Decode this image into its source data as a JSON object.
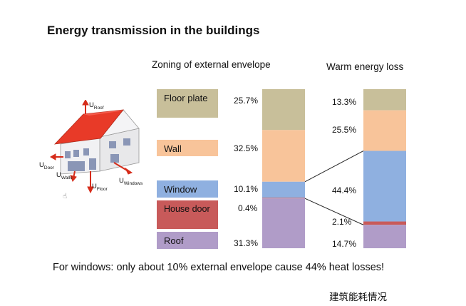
{
  "title": "Energy transmission in the buildings",
  "footer": "建筑能耗情况",
  "caption": "For windows: only about 10% external envelope cause 44% heat losses!",
  "house_labels": {
    "roof": "U",
    "roof_sub": "Roof",
    "door": "U",
    "door_sub": "Door",
    "walls": "U",
    "walls_sub": "Walls",
    "floor": "U",
    "floor_sub": "Floor",
    "windows": "U",
    "windows_sub": "Windows"
  },
  "colors": {
    "floor_plate": "#c8bf9a",
    "wall": "#f8c49a",
    "window": "#8fb0e0",
    "house_door": "#c85a5a",
    "roof": "#b09cc8"
  },
  "chart_data": {
    "type": "bar",
    "stacked": true,
    "categories": [
      "Floor plate",
      "Wall",
      "Window",
      "House door",
      "Roof"
    ],
    "series": [
      {
        "name": "Zoning of external envelope",
        "values": [
          25.7,
          32.5,
          10.1,
          0.4,
          31.3
        ],
        "labels": [
          "25.7%",
          "32.5%",
          "10.1%",
          "0.4%",
          "31.3%"
        ]
      },
      {
        "name": "Warm energy loss",
        "values": [
          13.3,
          25.5,
          44.4,
          2.1,
          14.7
        ],
        "labels": [
          "13.3%",
          "25.5%",
          "44.4%",
          "2.1%",
          "14.7%"
        ]
      }
    ]
  }
}
